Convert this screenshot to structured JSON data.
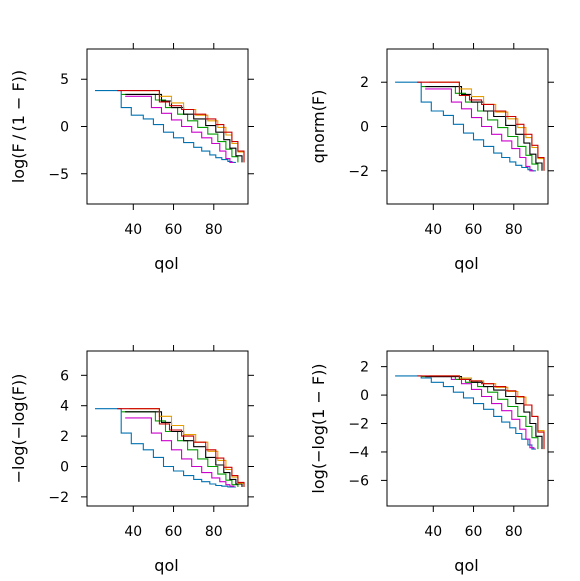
{
  "chart_data": [
    {
      "type": "line",
      "step": true,
      "xlabel": "qol",
      "ylabel": "log(F/(1-F))",
      "ylabel_display": "log(F / (1 − F))",
      "xlim": [
        17,
        97
      ],
      "ylim": [
        -8.2,
        8.2
      ],
      "xticks": [
        40,
        60,
        80
      ],
      "yticks": [
        -5,
        0,
        5
      ],
      "ytick_labels": [
        "−5",
        "0",
        "5"
      ],
      "series": [
        {
          "color": "#0072B2",
          "x": [
            21,
            32,
            34,
            39,
            45,
            50,
            55,
            60,
            65,
            70,
            74,
            78,
            81,
            84,
            87,
            89,
            91
          ],
          "y": [
            3.8,
            3.8,
            2.0,
            1.2,
            0.8,
            0.2,
            -0.6,
            -1.2,
            -1.7,
            -2.2,
            -2.6,
            -3.0,
            -3.3,
            -3.5,
            -3.7,
            -3.8,
            -3.8
          ]
        },
        {
          "color": "#CC00CC",
          "x": [
            36,
            45,
            49,
            54,
            59,
            64,
            69,
            74,
            79,
            83,
            86,
            88,
            90
          ],
          "y": [
            3.2,
            3.2,
            2.0,
            1.4,
            0.7,
            0.0,
            -0.6,
            -1.2,
            -1.8,
            -2.6,
            -3.4,
            -3.8,
            -3.8
          ]
        },
        {
          "color": "#009E00",
          "x": [
            34,
            46,
            51,
            56,
            62,
            67,
            72,
            77,
            82,
            86,
            89,
            92
          ],
          "y": [
            3.4,
            3.4,
            2.8,
            2.0,
            1.3,
            0.6,
            -0.1,
            -0.8,
            -1.6,
            -2.4,
            -3.2,
            -3.8
          ]
        },
        {
          "color": "#000000",
          "x": [
            36,
            49,
            54,
            59,
            65,
            70,
            76,
            81,
            85,
            88,
            91,
            94
          ],
          "y": [
            3.4,
            3.4,
            2.7,
            2.0,
            1.3,
            0.8,
            0.1,
            -0.6,
            -1.4,
            -2.3,
            -3.1,
            -3.8
          ]
        },
        {
          "color": "#E69F00",
          "x": [
            38,
            49,
            53,
            59,
            65,
            71,
            77,
            82,
            86,
            89,
            92,
            95
          ],
          "y": [
            3.8,
            3.8,
            3.2,
            2.5,
            1.8,
            1.2,
            0.6,
            -0.1,
            -0.9,
            -1.8,
            -2.7,
            -3.8
          ]
        },
        {
          "color": "#CC0000",
          "x": [
            32,
            49,
            53,
            58,
            64,
            70,
            76,
            81,
            85,
            89,
            92,
            95
          ],
          "y": [
            3.8,
            3.8,
            2.6,
            2.2,
            1.8,
            1.3,
            0.8,
            0.2,
            -0.6,
            -1.6,
            -2.6,
            -3.8
          ]
        }
      ]
    },
    {
      "type": "line",
      "step": true,
      "xlabel": "qol",
      "ylabel": "qnorm(F)",
      "xlim": [
        17,
        97
      ],
      "ylim": [
        -3.5,
        3.5
      ],
      "xticks": [
        40,
        60,
        80
      ],
      "yticks": [
        -2,
        0,
        2
      ],
      "ytick_labels": [
        "−2",
        "0",
        "2"
      ],
      "series": [
        {
          "color": "#0072B2",
          "x": [
            21,
            32,
            34,
            39,
            45,
            50,
            55,
            60,
            65,
            70,
            74,
            78,
            81,
            84,
            87,
            89,
            91
          ],
          "y": [
            2.0,
            2.0,
            1.1,
            0.7,
            0.5,
            0.1,
            -0.3,
            -0.6,
            -0.9,
            -1.2,
            -1.4,
            -1.6,
            -1.75,
            -1.85,
            -1.95,
            -2.0,
            -2.0
          ]
        },
        {
          "color": "#CC00CC",
          "x": [
            36,
            45,
            49,
            54,
            59,
            64,
            69,
            74,
            79,
            83,
            86,
            88,
            90
          ],
          "y": [
            1.7,
            1.7,
            1.1,
            0.8,
            0.4,
            0.0,
            -0.35,
            -0.65,
            -1.0,
            -1.4,
            -1.8,
            -2.0,
            -2.0
          ]
        },
        {
          "color": "#009E00",
          "x": [
            34,
            46,
            51,
            56,
            62,
            67,
            72,
            77,
            82,
            86,
            89,
            92
          ],
          "y": [
            1.8,
            1.8,
            1.5,
            1.1,
            0.7,
            0.3,
            -0.05,
            -0.45,
            -0.9,
            -1.3,
            -1.7,
            -2.0
          ]
        },
        {
          "color": "#000000",
          "x": [
            36,
            49,
            54,
            59,
            65,
            70,
            76,
            81,
            85,
            88,
            91,
            94
          ],
          "y": [
            1.8,
            1.8,
            1.45,
            1.1,
            0.7,
            0.45,
            0.05,
            -0.35,
            -0.75,
            -1.25,
            -1.65,
            -2.0
          ]
        },
        {
          "color": "#E69F00",
          "x": [
            38,
            49,
            53,
            59,
            65,
            71,
            77,
            82,
            86,
            89,
            92,
            95
          ],
          "y": [
            2.0,
            2.0,
            1.7,
            1.35,
            1.0,
            0.65,
            0.35,
            -0.05,
            -0.5,
            -0.95,
            -1.45,
            -2.0
          ]
        },
        {
          "color": "#CC0000",
          "x": [
            32,
            49,
            53,
            58,
            64,
            70,
            76,
            81,
            85,
            89,
            92,
            95
          ],
          "y": [
            2.0,
            2.0,
            1.4,
            1.2,
            1.0,
            0.7,
            0.45,
            0.1,
            -0.35,
            -0.85,
            -1.4,
            -2.0
          ]
        }
      ]
    },
    {
      "type": "line",
      "step": true,
      "xlabel": "qol",
      "ylabel": "-log(-log(F))",
      "ylabel_display": "−log(−log(F))",
      "xlim": [
        17,
        97
      ],
      "ylim": [
        -2.6,
        7.6
      ],
      "xticks": [
        40,
        60,
        80
      ],
      "yticks": [
        -2,
        0,
        2,
        4,
        6
      ],
      "ytick_labels": [
        "−2",
        "0",
        "2",
        "4",
        "6"
      ],
      "series": [
        {
          "color": "#0072B2",
          "x": [
            21,
            32,
            34,
            39,
            45,
            50,
            55,
            60,
            65,
            70,
            74,
            78,
            81,
            84,
            87,
            89,
            91
          ],
          "y": [
            3.8,
            3.8,
            2.2,
            1.5,
            1.1,
            0.6,
            0.0,
            -0.3,
            -0.6,
            -0.85,
            -1.0,
            -1.15,
            -1.25,
            -1.3,
            -1.35,
            -1.35,
            -1.35
          ]
        },
        {
          "color": "#CC00CC",
          "x": [
            36,
            45,
            49,
            54,
            59,
            64,
            69,
            74,
            79,
            83,
            86,
            88,
            90
          ],
          "y": [
            3.2,
            3.2,
            2.2,
            1.7,
            1.1,
            0.5,
            0.0,
            -0.4,
            -0.75,
            -1.0,
            -1.2,
            -1.3,
            -1.35
          ]
        },
        {
          "color": "#009E00",
          "x": [
            34,
            46,
            51,
            56,
            62,
            67,
            72,
            77,
            82,
            86,
            89,
            92
          ],
          "y": [
            3.6,
            3.6,
            3.0,
            2.3,
            1.7,
            1.1,
            0.5,
            0.0,
            -0.5,
            -0.9,
            -1.2,
            -1.35
          ]
        },
        {
          "color": "#000000",
          "x": [
            36,
            49,
            54,
            59,
            65,
            70,
            76,
            81,
            85,
            88,
            91,
            94
          ],
          "y": [
            3.6,
            3.6,
            2.9,
            2.3,
            1.7,
            1.3,
            0.6,
            0.1,
            -0.4,
            -0.85,
            -1.15,
            -1.35
          ]
        },
        {
          "color": "#E69F00",
          "x": [
            38,
            49,
            53,
            59,
            65,
            71,
            77,
            82,
            86,
            89,
            92,
            95
          ],
          "y": [
            3.8,
            3.8,
            3.3,
            2.7,
            2.1,
            1.6,
            1.0,
            0.4,
            -0.2,
            -0.7,
            -1.1,
            -1.35
          ]
        },
        {
          "color": "#CC0000",
          "x": [
            32,
            49,
            53,
            58,
            64,
            70,
            76,
            81,
            85,
            89,
            92,
            95
          ],
          "y": [
            3.8,
            3.8,
            2.8,
            2.4,
            2.0,
            1.6,
            1.1,
            0.55,
            -0.05,
            -0.6,
            -1.05,
            -1.35
          ]
        }
      ]
    },
    {
      "type": "line",
      "step": true,
      "xlabel": "qol",
      "ylabel": "log(-log(1-F))",
      "ylabel_display": "log(−log(1 − F))",
      "xlim": [
        17,
        97
      ],
      "ylim": [
        -7.8,
        3.1
      ],
      "xticks": [
        40,
        60,
        80
      ],
      "yticks": [
        -6,
        -4,
        -2,
        0,
        2
      ],
      "ytick_labels": [
        "−6",
        "−4",
        "−2",
        "0",
        "2"
      ],
      "series": [
        {
          "color": "#0072B2",
          "x": [
            21,
            32,
            34,
            39,
            45,
            50,
            55,
            60,
            65,
            70,
            74,
            78,
            81,
            84,
            87,
            89,
            91
          ],
          "y": [
            1.35,
            1.35,
            1.2,
            0.9,
            0.6,
            0.2,
            -0.2,
            -0.6,
            -1.0,
            -1.5,
            -1.9,
            -2.3,
            -2.7,
            -3.1,
            -3.5,
            -3.8,
            -3.8
          ]
        },
        {
          "color": "#CC00CC",
          "x": [
            36,
            45,
            49,
            54,
            59,
            64,
            69,
            74,
            79,
            83,
            86,
            88,
            90
          ],
          "y": [
            1.3,
            1.3,
            1.1,
            0.8,
            0.4,
            -0.1,
            -0.6,
            -1.1,
            -1.7,
            -2.4,
            -3.1,
            -3.7,
            -3.8
          ]
        },
        {
          "color": "#009E00",
          "x": [
            34,
            46,
            51,
            56,
            62,
            67,
            72,
            77,
            82,
            86,
            89,
            92
          ],
          "y": [
            1.3,
            1.3,
            1.1,
            0.9,
            0.6,
            0.2,
            -0.3,
            -0.8,
            -1.5,
            -2.2,
            -3.0,
            -3.8
          ]
        },
        {
          "color": "#000000",
          "x": [
            36,
            49,
            54,
            59,
            65,
            70,
            76,
            81,
            85,
            88,
            91,
            94
          ],
          "y": [
            1.3,
            1.3,
            1.1,
            0.9,
            0.6,
            0.35,
            -0.1,
            -0.6,
            -1.2,
            -2.0,
            -2.9,
            -3.8
          ]
        },
        {
          "color": "#E69F00",
          "x": [
            38,
            49,
            53,
            59,
            65,
            71,
            77,
            82,
            86,
            89,
            92,
            95
          ],
          "y": [
            1.35,
            1.35,
            1.2,
            1.0,
            0.8,
            0.55,
            0.25,
            -0.15,
            -0.7,
            -1.5,
            -2.5,
            -3.8
          ]
        },
        {
          "color": "#CC0000",
          "x": [
            32,
            49,
            53,
            58,
            64,
            70,
            76,
            81,
            85,
            89,
            92,
            95
          ],
          "y": [
            1.35,
            1.35,
            1.1,
            1.0,
            0.8,
            0.6,
            0.3,
            -0.1,
            -0.7,
            -1.5,
            -2.6,
            -3.8
          ]
        }
      ]
    }
  ]
}
